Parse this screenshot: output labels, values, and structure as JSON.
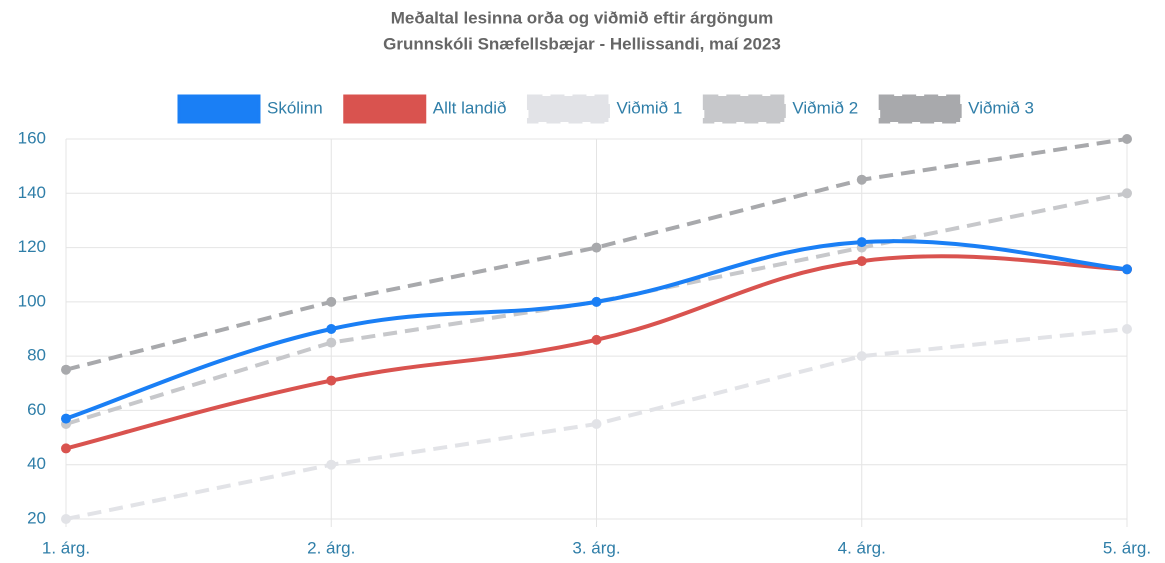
{
  "chart_data": {
    "type": "line",
    "title": [
      "Meðaltal lesinna orða og viðmið eftir árgöngum",
      "Grunnskóli Snæfellsbæjar - Hellissandi, maí 2023"
    ],
    "categories": [
      "1. árg.",
      "2. árg.",
      "3. árg.",
      "4. árg.",
      "5. árg."
    ],
    "series": [
      {
        "name": "Skólinn",
        "color": "#1a7ff5",
        "dashed": false,
        "values": [
          57,
          90,
          100,
          122,
          112
        ]
      },
      {
        "name": "Allt landið",
        "color": "#d9534f",
        "dashed": false,
        "values": [
          46,
          71,
          86,
          115,
          112
        ]
      },
      {
        "name": "Viðmið 1",
        "color": "#e2e3e7",
        "dashed": true,
        "values": [
          20,
          40,
          55,
          80,
          90
        ]
      },
      {
        "name": "Viðmið 2",
        "color": "#c7c8cb",
        "dashed": true,
        "values": [
          55,
          85,
          100,
          120,
          140
        ]
      },
      {
        "name": "Viðmið 3",
        "color": "#a8a9ac",
        "dashed": true,
        "values": [
          75,
          100,
          120,
          145,
          160
        ]
      }
    ],
    "ylim": [
      20,
      160
    ],
    "yticks": [
      20,
      40,
      60,
      80,
      100,
      120,
      140,
      160
    ],
    "grid": true,
    "legend": "top"
  }
}
